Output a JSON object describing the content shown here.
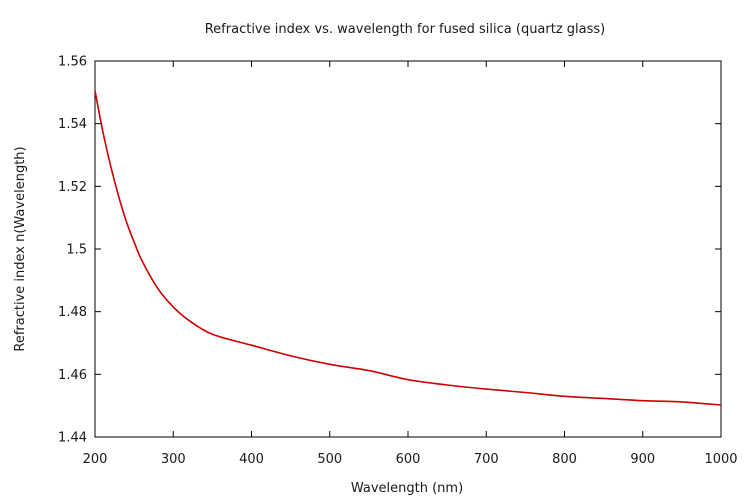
{
  "chart_data": {
    "type": "line",
    "title": "Refractive index vs. wavelength for fused silica (quartz glass)",
    "xlabel": "Wavelength (nm)",
    "ylabel": "Refractive index n(Wavelength)",
    "xlim": [
      200,
      1000
    ],
    "ylim": [
      1.44,
      1.56
    ],
    "x_ticks": [
      200,
      300,
      400,
      500,
      600,
      700,
      800,
      900,
      1000
    ],
    "x_tick_labels": [
      "200",
      "300",
      "400",
      "500",
      "600",
      "700",
      "800",
      "900",
      "1000"
    ],
    "y_ticks": [
      1.44,
      1.46,
      1.48,
      1.5,
      1.52,
      1.54,
      1.56
    ],
    "y_tick_labels": [
      "1.44",
      "1.46",
      "1.48",
      "1.5",
      "1.52",
      "1.54",
      "1.56"
    ],
    "grid": false,
    "series": [
      {
        "color": "#cc0000",
        "x": [
          200,
          210,
          220,
          230,
          240,
          250,
          260,
          280,
          300,
          320,
          350,
          400,
          450,
          500,
          550,
          600,
          650,
          700,
          750,
          800,
          850,
          900,
          950,
          1000
        ],
        "y": [
          1.5505,
          1.5375,
          1.5265,
          1.517,
          1.5088,
          1.5022,
          1.4963,
          1.4875,
          1.4815,
          1.4772,
          1.4728,
          1.4693,
          1.4659,
          1.4632,
          1.4612,
          1.4583,
          1.4566,
          1.4553,
          1.4542,
          1.453,
          1.4523,
          1.4516,
          1.4512,
          1.4502
        ]
      }
    ]
  }
}
